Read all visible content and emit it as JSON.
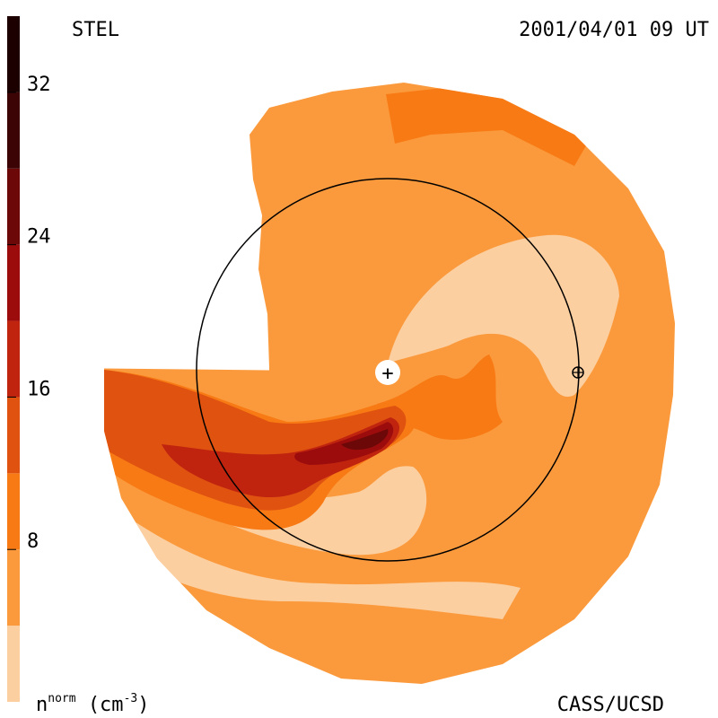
{
  "chart_data": {
    "type": "heatmap",
    "instrument": "STEL",
    "timestamp": "2001/04/01 09 UT",
    "credit": "CASS/UCSD",
    "colorbar": {
      "label_base": "n",
      "label_sup": "norm",
      "label_unit": "(cm",
      "label_unit_exp": "-3",
      "label_close": ")",
      "ticks": [
        8,
        16,
        24,
        32
      ],
      "range": [
        0,
        36
      ],
      "bands": [
        {
          "min": 0,
          "max": 4,
          "color": "#fccfa1"
        },
        {
          "min": 4,
          "max": 8,
          "color": "#fb9a3c"
        },
        {
          "min": 8,
          "max": 12,
          "color": "#f87a14"
        },
        {
          "min": 12,
          "max": 16,
          "color": "#df5210"
        },
        {
          "min": 16,
          "max": 20,
          "color": "#c0240f"
        },
        {
          "min": 20,
          "max": 24,
          "color": "#9c0c0c"
        },
        {
          "min": 24,
          "max": 28,
          "color": "#6c0808"
        },
        {
          "min": 28,
          "max": 32,
          "color": "#3c0404"
        },
        {
          "min": 32,
          "max": 36,
          "color": "#1c0000"
        }
      ]
    },
    "markers": [
      {
        "name": "Sun",
        "symbol": "+"
      },
      {
        "name": "Earth",
        "symbol": "⊕"
      }
    ]
  }
}
